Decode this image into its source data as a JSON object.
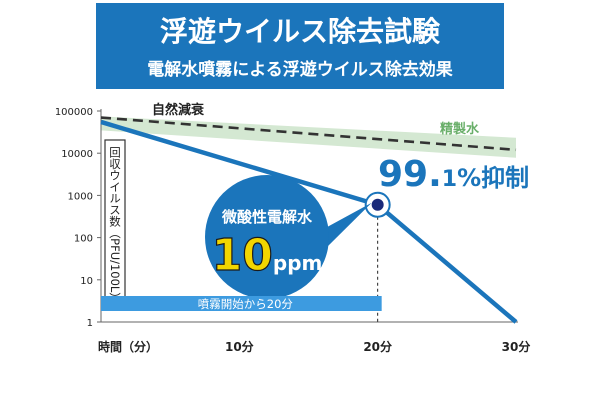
{
  "header": {
    "title": "浮遊ウイルス除去試験",
    "subtitle": "電解水噴霧による浮遊ウイルス除去効果",
    "bg_color": "#1b75bb"
  },
  "chart_data": {
    "type": "line",
    "y_scale": "log",
    "ylim": [
      1,
      100000
    ],
    "xlim": [
      0,
      30
    ],
    "y_ticks": [
      "100000",
      "10000",
      "1000",
      "100",
      "10",
      "1"
    ],
    "x_ticks": [
      {
        "label": "時間（分）",
        "value": 0
      },
      {
        "label": "10分",
        "value": 10
      },
      {
        "label": "20分",
        "value": 20
      },
      {
        "label": "30分",
        "value": 30
      }
    ],
    "ylabel": "回収ウイルス数（PFU/100L）",
    "series": [
      {
        "name": "自然減衰",
        "style": "dashed",
        "color": "#333333",
        "points": [
          [
            0,
            70000
          ],
          [
            30,
            12000
          ]
        ]
      },
      {
        "name": "精製水",
        "style": "band",
        "color": "#d4e8d2",
        "label_color": "#6aaf6a",
        "points": [
          [
            0,
            60000
          ],
          [
            30,
            15000
          ]
        ]
      },
      {
        "name": "微酸性電解水",
        "style": "solid",
        "color": "#1b75bb",
        "points": [
          [
            0,
            55000
          ],
          [
            20,
            600
          ],
          [
            30,
            1
          ]
        ]
      }
    ],
    "highlight_point": {
      "x": 20,
      "y": 600
    },
    "annotation": {
      "value": "99.",
      "decimal": "1",
      "suffix": "%抑制"
    },
    "bubble": {
      "name": "微酸性電解水",
      "number": "10",
      "unit": "ppm"
    },
    "time_bar": {
      "label": "噴霧開始から20分",
      "from": 0,
      "to": 20
    }
  },
  "colors": {
    "accent": "#1b75bb",
    "time_bar": "#3d9be0",
    "band": "#d4e8d2",
    "dashed": "#333333",
    "bubble_number": "#f2d600"
  }
}
